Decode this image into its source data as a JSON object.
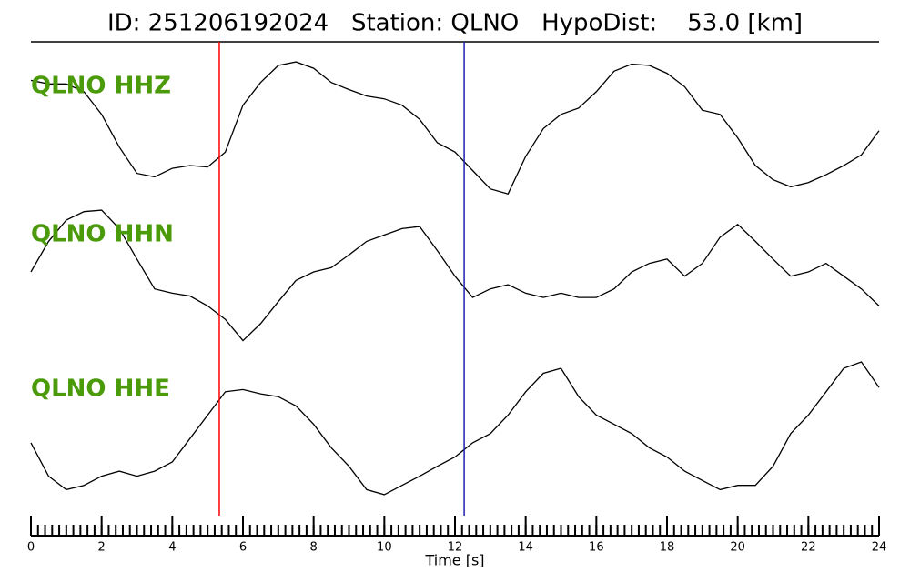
{
  "chart_data": {
    "type": "waveform",
    "title": "ID: 251206192024   Station: QLNO   HypoDist:    53.0 [km]",
    "xlabel": "Time [s]",
    "xlim": [
      0,
      24
    ],
    "xticks": [
      0,
      2,
      4,
      6,
      8,
      10,
      12,
      14,
      16,
      18,
      20,
      22,
      24
    ],
    "xminor_step": 0.2,
    "ylim": [
      -1,
      1
    ],
    "label_color": "#4a9a0a",
    "x": [
      0,
      0.5,
      1,
      1.5,
      2,
      2.5,
      3,
      3.5,
      4,
      4.5,
      5,
      5.5,
      6,
      6.5,
      7,
      7.5,
      8,
      8.5,
      9,
      9.5,
      10,
      10.5,
      11,
      11.5,
      12,
      12.5,
      13,
      13.5,
      14,
      14.5,
      15,
      15.5,
      16,
      16.5,
      17,
      17.5,
      18,
      18.5,
      19,
      19.5,
      20,
      20.5,
      21,
      21.5,
      22,
      22.5,
      23,
      23.5,
      24
    ],
    "series": [
      {
        "name": "QLNO HHZ",
        "color": "#000000",
        "values": [
          0.7,
          0.65,
          0.65,
          0.54,
          0.22,
          -0.24,
          -0.61,
          -0.66,
          -0.54,
          -0.5,
          -0.52,
          -0.31,
          0.35,
          0.67,
          0.91,
          0.96,
          0.87,
          0.67,
          0.57,
          0.48,
          0.44,
          0.35,
          0.15,
          -0.18,
          -0.31,
          -0.57,
          -0.83,
          -0.9,
          -0.37,
          0.02,
          0.22,
          0.31,
          0.54,
          0.83,
          0.93,
          0.91,
          0.8,
          0.61,
          0.28,
          0.22,
          -0.11,
          -0.5,
          -0.7,
          -0.8,
          -0.74,
          -0.63,
          -0.5,
          -0.35,
          -0.01
        ]
      },
      {
        "name": "QLNO HHN",
        "color": "#000000",
        "values": [
          0.09,
          0.52,
          0.82,
          0.94,
          0.96,
          0.7,
          0.27,
          -0.15,
          -0.21,
          -0.25,
          -0.39,
          -0.58,
          -0.88,
          -0.64,
          -0.33,
          -0.03,
          0.09,
          0.15,
          0.33,
          0.52,
          0.61,
          0.7,
          0.73,
          0.39,
          0.03,
          -0.27,
          -0.15,
          -0.09,
          -0.21,
          -0.27,
          -0.21,
          -0.27,
          -0.27,
          -0.15,
          0.09,
          0.21,
          0.27,
          0.03,
          0.21,
          0.58,
          0.76,
          0.52,
          0.27,
          0.03,
          0.09,
          0.21,
          0.03,
          -0.15,
          -0.39
        ]
      },
      {
        "name": "QLNO HHE",
        "color": "#000000",
        "values": [
          -0.14,
          -0.61,
          -0.8,
          -0.74,
          -0.61,
          -0.54,
          -0.61,
          -0.54,
          -0.41,
          -0.08,
          0.25,
          0.58,
          0.61,
          0.55,
          0.51,
          0.38,
          0.12,
          -0.21,
          -0.47,
          -0.8,
          -0.87,
          -0.74,
          -0.61,
          -0.47,
          -0.34,
          -0.14,
          -0.01,
          0.25,
          0.58,
          0.84,
          0.91,
          0.51,
          0.25,
          0.12,
          -0.01,
          -0.21,
          -0.34,
          -0.54,
          -0.67,
          -0.8,
          -0.74,
          -0.74,
          -0.47,
          -0.01,
          0.25,
          0.58,
          0.91,
          1.0,
          0.64
        ]
      }
    ],
    "markers": [
      {
        "x": 5.33,
        "color": "#ff0000"
      },
      {
        "x": 12.26,
        "color": "#2020b0"
      }
    ]
  }
}
